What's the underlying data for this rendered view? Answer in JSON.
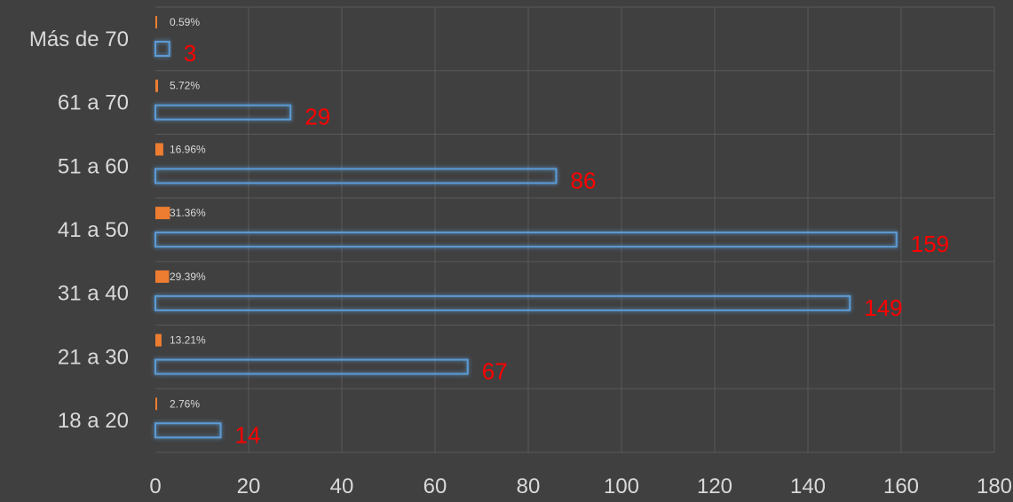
{
  "chart_data": {
    "type": "bar",
    "orientation": "horizontal",
    "categories": [
      "Más de 70",
      "61 a 70",
      "51 a 60",
      "41 a 50",
      "31 a 40",
      "21 a 30",
      "18 a 20"
    ],
    "series": [
      {
        "values": [
          3,
          29,
          86,
          159,
          149,
          67,
          14
        ],
        "color": "#5b9bd5",
        "data_labels": [
          "3",
          "29",
          "86",
          "159",
          "149",
          "67",
          "14"
        ]
      },
      {
        "values": [
          0.59,
          5.72,
          16.96,
          31.36,
          29.39,
          13.21,
          2.76
        ],
        "color": "#ed7d31",
        "data_labels": [
          "0.59%",
          "5.72%",
          "16.96%",
          "31.36%",
          "29.39%",
          "13.21%",
          "2.76%"
        ]
      }
    ],
    "xlim": [
      0,
      180
    ],
    "xticks": [
      "0",
      "20",
      "40",
      "60",
      "80",
      "100",
      "120",
      "140",
      "160",
      "180"
    ],
    "grid": true,
    "legend": "none",
    "colors": {
      "background": "#404040",
      "grid": "#595959",
      "count_label": "#ff0000",
      "text": "#d9d9d9"
    }
  }
}
